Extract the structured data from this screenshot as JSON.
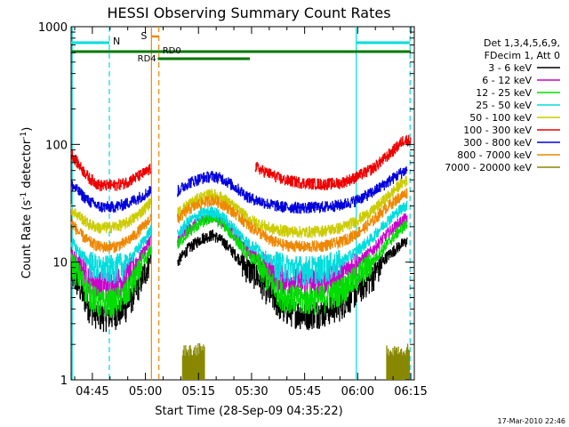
{
  "chart_data": {
    "type": "line",
    "title": "HESSI Observing Summary Count Rates",
    "xlabel": "Start Time (28-Sep-09 04:35:22)",
    "ylabel_main": "Count Rate (s",
    "ylabel_sup1": "-1",
    "ylabel_mid": " detector",
    "ylabel_sup2": "-1",
    "ylabel_end": ")",
    "y_scale": "log",
    "ylim": [
      1,
      1000
    ],
    "xlim_minutes": [
      4,
      101
    ],
    "x_ticks": [
      {
        "m": 10,
        "label": "04:45"
      },
      {
        "m": 25,
        "label": "05:00"
      },
      {
        "m": 40,
        "label": "05:15"
      },
      {
        "m": 55,
        "label": "05:30"
      },
      {
        "m": 70,
        "label": "05:45"
      },
      {
        "m": 85,
        "label": "06:00"
      },
      {
        "m": 100,
        "label": "06:15"
      }
    ],
    "y_ticks": [
      {
        "v": 1,
        "label": "1"
      },
      {
        "v": 10,
        "label": "10"
      },
      {
        "v": 100,
        "label": "100"
      },
      {
        "v": 1000,
        "label": "1000"
      }
    ],
    "legend_header": [
      "Det 1,3,4,5,6,9,",
      "FDecim 1, Att 0"
    ],
    "series": [
      {
        "name": "3 - 6 keV",
        "color": "#000000",
        "left": [
          [
            4,
            8
          ],
          [
            6,
            6.5
          ],
          [
            9,
            4.2
          ],
          [
            12,
            3.5
          ],
          [
            16,
            3.6
          ],
          [
            19,
            4.0
          ],
          [
            22,
            5.6
          ],
          [
            25,
            8.5
          ],
          [
            26.5,
            11
          ]
        ],
        "right": [
          [
            34,
            10
          ],
          [
            37,
            13
          ],
          [
            41,
            16
          ],
          [
            44,
            17
          ],
          [
            47,
            15
          ],
          [
            51,
            11
          ],
          [
            54.5,
            8.5
          ],
          [
            56,
            8
          ],
          [
            60,
            5.5
          ],
          [
            64,
            4.0
          ],
          [
            70,
            3.6
          ],
          [
            75,
            3.8
          ],
          [
            80,
            4.3
          ],
          [
            84,
            5.5
          ],
          [
            89,
            7.5
          ],
          [
            93,
            11
          ],
          [
            97,
            14
          ],
          [
            99,
            15
          ]
        ]
      },
      {
        "name": "6 - 12 keV",
        "color": "#cc00cc",
        "left": [
          [
            4,
            12
          ],
          [
            6,
            10
          ],
          [
            9,
            7.5
          ],
          [
            12,
            6.5
          ],
          [
            16,
            6.8
          ],
          [
            19,
            7.3
          ],
          [
            22,
            9.5
          ],
          [
            25,
            13
          ],
          [
            26.5,
            16
          ]
        ],
        "right": [
          [
            34,
            15
          ],
          [
            37,
            19
          ],
          [
            41,
            23
          ],
          [
            44,
            25
          ],
          [
            47,
            22
          ],
          [
            51,
            16
          ],
          [
            54.5,
            12
          ],
          [
            56,
            11.5
          ],
          [
            60,
            8.5
          ],
          [
            64,
            7.2
          ],
          [
            70,
            6.8
          ],
          [
            75,
            7.0
          ],
          [
            80,
            7.8
          ],
          [
            84,
            9.5
          ],
          [
            89,
            12.5
          ],
          [
            93,
            17
          ],
          [
            97,
            22
          ],
          [
            99,
            24
          ]
        ]
      },
      {
        "name": "12 - 25 keV",
        "color": "#00dd00",
        "left": [
          [
            4,
            10
          ],
          [
            6,
            8
          ],
          [
            9,
            5.5
          ],
          [
            12,
            4.5
          ],
          [
            16,
            4.7
          ],
          [
            19,
            5.2
          ],
          [
            22,
            7.3
          ],
          [
            25,
            10.5
          ],
          [
            26.5,
            13
          ]
        ],
        "right": [
          [
            34,
            14
          ],
          [
            37,
            18
          ],
          [
            41,
            22
          ],
          [
            44,
            24
          ],
          [
            47,
            21
          ],
          [
            51,
            15
          ],
          [
            54.5,
            11
          ],
          [
            56,
            10.5
          ],
          [
            60,
            7.0
          ],
          [
            64,
            5.2
          ],
          [
            70,
            4.8
          ],
          [
            75,
            5.0
          ],
          [
            80,
            5.8
          ],
          [
            84,
            7.2
          ],
          [
            89,
            10
          ],
          [
            93,
            14
          ],
          [
            97,
            19
          ],
          [
            99,
            21
          ]
        ]
      },
      {
        "name": "25 - 50 keV",
        "color": "#00dddd",
        "left": [
          [
            4,
            15
          ],
          [
            6,
            12.5
          ],
          [
            9,
            10
          ],
          [
            12,
            8.8
          ],
          [
            16,
            9.0
          ],
          [
            19,
            9.6
          ],
          [
            22,
            12
          ],
          [
            25,
            16
          ],
          [
            26.5,
            19
          ]
        ],
        "right": [
          [
            34,
            17
          ],
          [
            37,
            22
          ],
          [
            41,
            26
          ],
          [
            44,
            27
          ],
          [
            47,
            24
          ],
          [
            51,
            18
          ],
          [
            54.5,
            14
          ],
          [
            56,
            13.5
          ],
          [
            60,
            10.5
          ],
          [
            64,
            9.2
          ],
          [
            70,
            8.8
          ],
          [
            75,
            9.0
          ],
          [
            80,
            10
          ],
          [
            84,
            12
          ],
          [
            89,
            16
          ],
          [
            93,
            22
          ],
          [
            97,
            28
          ],
          [
            99,
            31
          ]
        ]
      },
      {
        "name": "50 - 100 keV",
        "color": "#cccc00",
        "left": [
          [
            4,
            28
          ],
          [
            6,
            25
          ],
          [
            9,
            21
          ],
          [
            12,
            19.5
          ],
          [
            16,
            20
          ],
          [
            19,
            21
          ],
          [
            22,
            24
          ],
          [
            25,
            29
          ],
          [
            26.5,
            33
          ]
        ],
        "right": [
          [
            34,
            26
          ],
          [
            37,
            31
          ],
          [
            41,
            36
          ],
          [
            44,
            38
          ],
          [
            47,
            35
          ],
          [
            51,
            28
          ],
          [
            54.5,
            23
          ],
          [
            56,
            22
          ],
          [
            60,
            19.5
          ],
          [
            64,
            18.5
          ],
          [
            70,
            18
          ],
          [
            75,
            18.5
          ],
          [
            80,
            19.5
          ],
          [
            84,
            22
          ],
          [
            89,
            27
          ],
          [
            93,
            35
          ],
          [
            97,
            46
          ],
          [
            99,
            50
          ]
        ]
      },
      {
        "name": "100 - 300 keV",
        "color": "#ee0000",
        "left": [
          [
            4,
            85
          ],
          [
            6,
            68
          ],
          [
            9,
            52
          ],
          [
            12,
            45
          ],
          [
            16,
            45
          ],
          [
            19,
            47
          ],
          [
            22,
            52
          ],
          [
            25,
            58
          ],
          [
            26.5,
            62
          ]
        ],
        "right": [
          [
            56,
            65
          ],
          [
            58,
            60
          ],
          [
            61,
            55
          ],
          [
            64,
            50
          ],
          [
            70,
            47
          ],
          [
            75,
            46
          ],
          [
            80,
            47
          ],
          [
            84,
            52
          ],
          [
            89,
            62
          ],
          [
            93,
            78
          ],
          [
            96,
            95
          ],
          [
            98,
            110
          ],
          [
            100,
            108
          ]
        ]
      },
      {
        "name": "300 - 800 keV",
        "color": "#0000dd",
        "left": [
          [
            4,
            46
          ],
          [
            6,
            40
          ],
          [
            9,
            33
          ],
          [
            12,
            29.5
          ],
          [
            16,
            29.5
          ],
          [
            19,
            31
          ],
          [
            22,
            34
          ],
          [
            25,
            38
          ],
          [
            26.5,
            41
          ]
        ],
        "right": [
          [
            34,
            40
          ],
          [
            37,
            47
          ],
          [
            41,
            52
          ],
          [
            44,
            54
          ],
          [
            47,
            51
          ],
          [
            51,
            42
          ],
          [
            54.5,
            35
          ],
          [
            56,
            34
          ],
          [
            60,
            31
          ],
          [
            64,
            29.5
          ],
          [
            70,
            29
          ],
          [
            75,
            29.5
          ],
          [
            80,
            30.5
          ],
          [
            84,
            33
          ],
          [
            89,
            39
          ],
          [
            93,
            47
          ],
          [
            97,
            57
          ],
          [
            99,
            61
          ]
        ]
      },
      {
        "name": "800 - 7000 keV",
        "color": "#ee8800",
        "left": [
          [
            4,
            22
          ],
          [
            6,
            18
          ],
          [
            9,
            15
          ],
          [
            12,
            13.5
          ],
          [
            16,
            13.5
          ],
          [
            19,
            14.5
          ],
          [
            22,
            17
          ],
          [
            25,
            21
          ],
          [
            26.5,
            24
          ]
        ],
        "right": [
          [
            34,
            23
          ],
          [
            37,
            28
          ],
          [
            41,
            32
          ],
          [
            44,
            34
          ],
          [
            47,
            31
          ],
          [
            51,
            25
          ],
          [
            54.5,
            20
          ],
          [
            56,
            19
          ],
          [
            60,
            15.5
          ],
          [
            64,
            14
          ],
          [
            70,
            13.5
          ],
          [
            75,
            13.8
          ],
          [
            80,
            14.8
          ],
          [
            84,
            17
          ],
          [
            89,
            22
          ],
          [
            93,
            29
          ],
          [
            97,
            36
          ],
          [
            99,
            39
          ]
        ]
      },
      {
        "name": "7000 - 20000 keV",
        "color": "#888800",
        "left": [],
        "right": []
      }
    ],
    "attenuator_bursts": [
      [
        35.5,
        41.8
      ],
      [
        93.2,
        99.6
      ]
    ],
    "vertical_markers": [
      {
        "m": 4.3,
        "color": "#00dddd",
        "style": "solid"
      },
      {
        "m": 14.8,
        "color": "#00dddd",
        "style": "dashed"
      },
      {
        "m": 84.6,
        "color": "#00dddd",
        "style": "solid"
      },
      {
        "m": 99.8,
        "color": "#00dddd",
        "style": "dashed"
      },
      {
        "m": 26.7,
        "color": "#ee8800",
        "style": "solid"
      },
      {
        "m": 28.8,
        "color": "#ee8800",
        "style": "dashed"
      }
    ],
    "annotations": {
      "night_label": "N",
      "saa_label": "S",
      "rd0_label": "RD0",
      "rd4_label": "RD4"
    },
    "colors": {
      "night": "#00dddd",
      "saa": "#ee8800",
      "decimation": "#007700",
      "attenuator": "#888800"
    }
  },
  "footer": {
    "timestamp": "17-Mar-2010 22:46"
  }
}
